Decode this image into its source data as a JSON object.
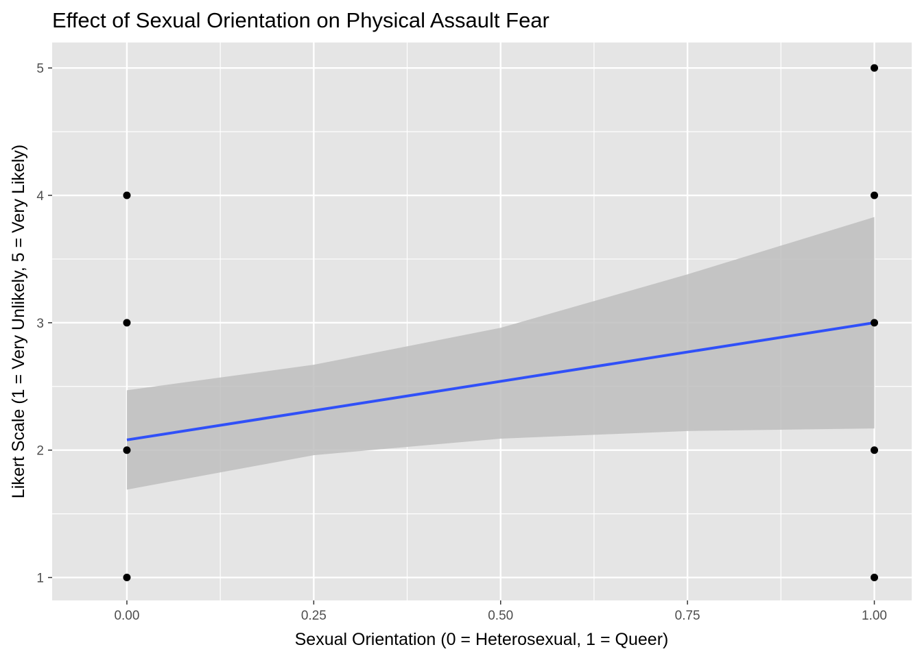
{
  "chart_data": {
    "type": "scatter",
    "title": "Effect of Sexual Orientation on Physical Assault Fear",
    "xlabel": "Sexual Orientation (0 = Heterosexual, 1 = Queer)",
    "ylabel": "Likert Scale (1 = Very Unlikely, 5 = Very Likely)",
    "xlim": [
      -0.1,
      1.05
    ],
    "ylim": [
      0.82,
      5.2
    ],
    "x_ticks": [
      {
        "value": 0.0,
        "label": "0.00"
      },
      {
        "value": 0.25,
        "label": "0.25"
      },
      {
        "value": 0.5,
        "label": "0.50"
      },
      {
        "value": 0.75,
        "label": "0.75"
      },
      {
        "value": 1.0,
        "label": "1.00"
      }
    ],
    "y_ticks": [
      {
        "value": 1,
        "label": "1"
      },
      {
        "value": 2,
        "label": "2"
      },
      {
        "value": 3,
        "label": "3"
      },
      {
        "value": 4,
        "label": "4"
      },
      {
        "value": 5,
        "label": "5"
      }
    ],
    "grid": true,
    "points": [
      {
        "x": 0,
        "y": 1
      },
      {
        "x": 0,
        "y": 2
      },
      {
        "x": 0,
        "y": 3
      },
      {
        "x": 0,
        "y": 4
      },
      {
        "x": 1,
        "y": 1
      },
      {
        "x": 1,
        "y": 2
      },
      {
        "x": 1,
        "y": 3
      },
      {
        "x": 1,
        "y": 4
      },
      {
        "x": 1,
        "y": 5
      }
    ],
    "regression_line": {
      "x": [
        0,
        1
      ],
      "y": [
        2.08,
        3.0
      ]
    },
    "confidence_band": {
      "x": [
        0,
        0.25,
        0.5,
        0.75,
        1.0
      ],
      "upper": [
        2.47,
        2.67,
        2.96,
        3.38,
        3.83
      ],
      "lower": [
        1.69,
        1.96,
        2.09,
        2.15,
        2.17
      ]
    },
    "colors": {
      "panel_background": "#e5e5e5",
      "grid": "#ffffff",
      "points": "#000000",
      "line": "#3050f8",
      "band": "#bebebe",
      "tick_label": "#4d4d4d"
    }
  }
}
